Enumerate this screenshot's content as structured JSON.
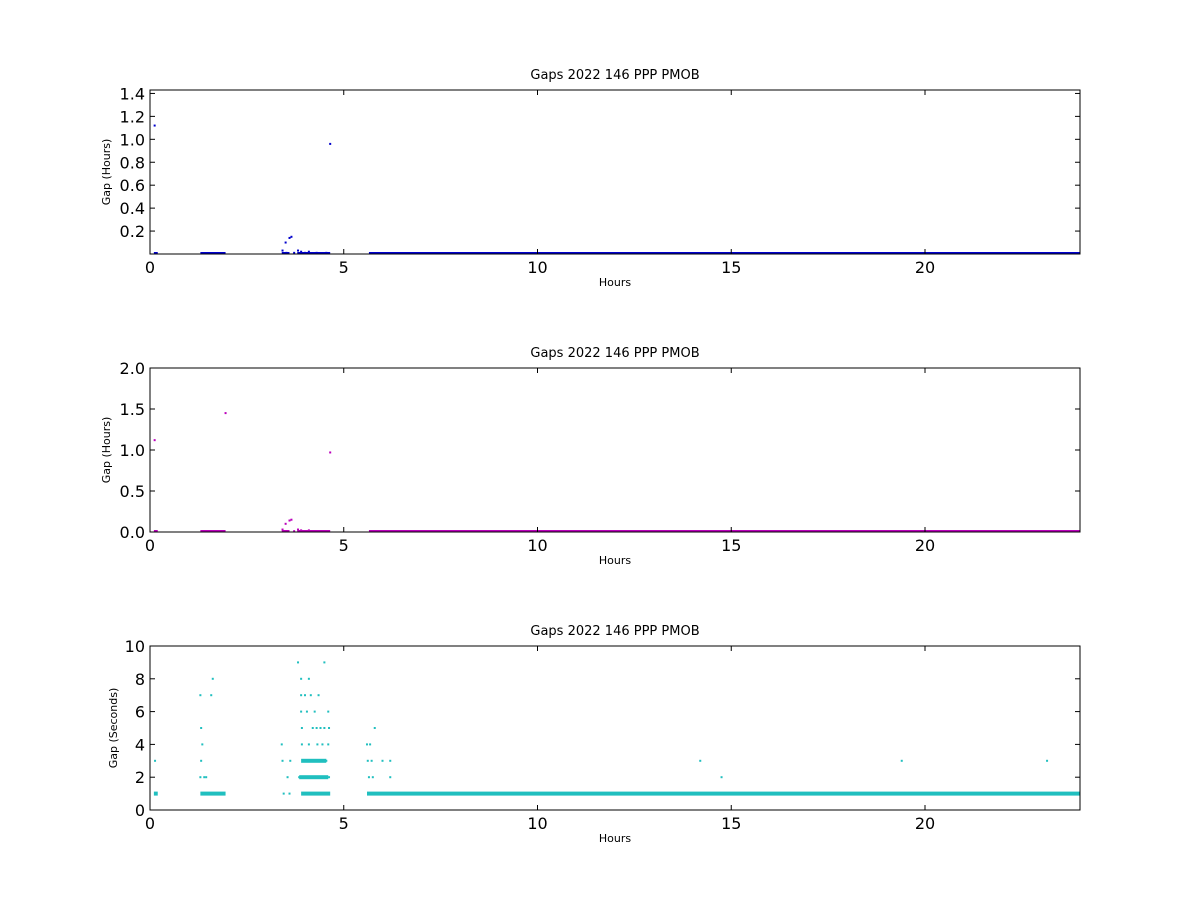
{
  "chart_data": [
    {
      "type": "scatter",
      "title": "Gaps 2022 146 PPP  PMOB",
      "xlabel": "Hours",
      "ylabel": "Gap (Hours)",
      "xlim": [
        0,
        24
      ],
      "ylim": [
        0,
        1.43
      ],
      "xticks": [
        0,
        5,
        10,
        15,
        20
      ],
      "xtick_labels": [
        "0",
        "5",
        "10",
        "15",
        "20"
      ],
      "yticks": [
        0.2,
        0.4,
        0.6,
        0.8,
        1.0,
        1.2,
        1.4
      ],
      "ytick_labels": [
        "0.2",
        "0.4",
        "0.6",
        "0.8",
        "1.0",
        "1.2",
        "1.4"
      ],
      "color": "#0000cc",
      "grid": false,
      "points": [
        [
          0.12,
          1.12
        ],
        [
          0.15,
          0.005
        ],
        [
          3.42,
          0.03
        ],
        [
          3.5,
          0.1
        ],
        [
          3.52,
          0.01
        ],
        [
          3.6,
          0.14
        ],
        [
          3.65,
          0.15
        ],
        [
          3.72,
          0.01
        ],
        [
          3.82,
          0.03
        ],
        [
          3.9,
          0.02
        ],
        [
          4.0,
          0.01
        ],
        [
          4.1,
          0.02
        ],
        [
          4.3,
          0.01
        ],
        [
          4.55,
          0.01
        ],
        [
          4.65,
          0.96
        ]
      ],
      "dense_bands": [
        {
          "x": [
            0.1,
            0.2
          ],
          "y": 0.0
        },
        {
          "x": [
            1.3,
            1.95
          ],
          "y": 0.0
        },
        {
          "x": [
            3.4,
            3.6
          ],
          "y": 0.0
        },
        {
          "x": [
            3.8,
            4.65
          ],
          "y": 0.0
        },
        {
          "x": [
            5.65,
            24.0
          ],
          "y": 0.0
        }
      ]
    },
    {
      "type": "scatter",
      "title": "Gaps 2022 146 PPP  PMOB",
      "xlabel": "Hours",
      "ylabel": "Gap (Hours)",
      "xlim": [
        0,
        24
      ],
      "ylim": [
        0,
        2.0
      ],
      "xticks": [
        0,
        5,
        10,
        15,
        20
      ],
      "xtick_labels": [
        "0",
        "5",
        "10",
        "15",
        "20"
      ],
      "yticks": [
        0.0,
        0.5,
        1.0,
        1.5,
        2.0
      ],
      "ytick_labels": [
        "0.0",
        "0.5",
        "1.0",
        "1.5",
        "2.0"
      ],
      "color": "#bb00bb",
      "grid": false,
      "points": [
        [
          0.12,
          1.12
        ],
        [
          0.15,
          0.01
        ],
        [
          1.95,
          1.45
        ],
        [
          3.42,
          0.03
        ],
        [
          3.5,
          0.1
        ],
        [
          3.52,
          0.01
        ],
        [
          3.6,
          0.14
        ],
        [
          3.65,
          0.15
        ],
        [
          3.72,
          0.01
        ],
        [
          3.82,
          0.03
        ],
        [
          3.9,
          0.02
        ],
        [
          4.0,
          0.01
        ],
        [
          4.1,
          0.02
        ],
        [
          4.3,
          0.01
        ],
        [
          4.55,
          0.01
        ],
        [
          4.65,
          0.97
        ]
      ],
      "dense_bands": [
        {
          "x": [
            0.1,
            0.2
          ],
          "y": 0.0
        },
        {
          "x": [
            1.3,
            1.95
          ],
          "y": 0.0
        },
        {
          "x": [
            3.4,
            3.6
          ],
          "y": 0.0
        },
        {
          "x": [
            3.8,
            4.65
          ],
          "y": 0.0
        },
        {
          "x": [
            5.65,
            24.0
          ],
          "y": 0.0
        }
      ]
    },
    {
      "type": "scatter",
      "title": "Gaps 2022 146 PPP  PMOB",
      "xlabel": "Hours",
      "ylabel": "Gap (Seconds)",
      "xlim": [
        0,
        24
      ],
      "ylim": [
        0,
        10
      ],
      "xticks": [
        0,
        5,
        10,
        15,
        20
      ],
      "xtick_labels": [
        "0",
        "5",
        "10",
        "15",
        "20"
      ],
      "yticks": [
        0,
        2,
        4,
        6,
        8,
        10
      ],
      "ytick_labels": [
        "0",
        "2",
        "4",
        "6",
        "8",
        "10"
      ],
      "color": "#20bfbf",
      "grid": false,
      "points": [
        [
          0.13,
          3
        ],
        [
          0.16,
          1
        ],
        [
          1.3,
          2
        ],
        [
          1.32,
          3
        ],
        [
          1.3,
          7
        ],
        [
          1.32,
          5
        ],
        [
          1.35,
          4
        ],
        [
          1.4,
          2
        ],
        [
          1.45,
          2
        ],
        [
          1.58,
          7
        ],
        [
          1.62,
          8
        ],
        [
          3.4,
          4
        ],
        [
          3.42,
          3
        ],
        [
          3.45,
          1
        ],
        [
          3.55,
          2
        ],
        [
          3.6,
          1
        ],
        [
          3.62,
          3
        ],
        [
          3.82,
          9
        ],
        [
          3.85,
          2
        ],
        [
          3.9,
          8
        ],
        [
          3.9,
          7
        ],
        [
          3.9,
          6
        ],
        [
          3.92,
          5
        ],
        [
          3.92,
          4
        ],
        [
          3.95,
          3
        ],
        [
          4.0,
          7
        ],
        [
          4.05,
          6
        ],
        [
          4.1,
          8
        ],
        [
          4.1,
          4
        ],
        [
          4.15,
          7
        ],
        [
          4.2,
          5
        ],
        [
          4.22,
          3
        ],
        [
          4.25,
          6
        ],
        [
          4.3,
          5
        ],
        [
          4.32,
          4
        ],
        [
          4.35,
          7
        ],
        [
          4.4,
          5
        ],
        [
          4.42,
          3
        ],
        [
          4.45,
          4
        ],
        [
          4.5,
          5
        ],
        [
          4.5,
          9
        ],
        [
          4.55,
          3
        ],
        [
          4.6,
          6
        ],
        [
          4.6,
          4
        ],
        [
          4.62,
          5
        ],
        [
          4.62,
          2
        ],
        [
          5.6,
          4
        ],
        [
          5.62,
          3
        ],
        [
          5.65,
          2
        ],
        [
          5.68,
          4
        ],
        [
          5.72,
          3
        ],
        [
          5.75,
          2
        ],
        [
          5.8,
          5
        ],
        [
          6.0,
          3
        ],
        [
          6.2,
          3
        ],
        [
          6.2,
          2
        ],
        [
          14.2,
          3
        ],
        [
          14.75,
          2
        ],
        [
          19.4,
          3
        ],
        [
          23.15,
          3
        ]
      ],
      "dense_bands": [
        {
          "x": [
            0.1,
            0.2
          ],
          "y": 1
        },
        {
          "x": [
            1.3,
            1.95
          ],
          "y": 1
        },
        {
          "x": [
            3.9,
            4.65
          ],
          "y": 1
        },
        {
          "x": [
            3.85,
            4.6
          ],
          "y": 2
        },
        {
          "x": [
            3.9,
            4.55
          ],
          "y": 3
        },
        {
          "x": [
            5.6,
            24.0
          ],
          "y": 1
        }
      ]
    }
  ]
}
